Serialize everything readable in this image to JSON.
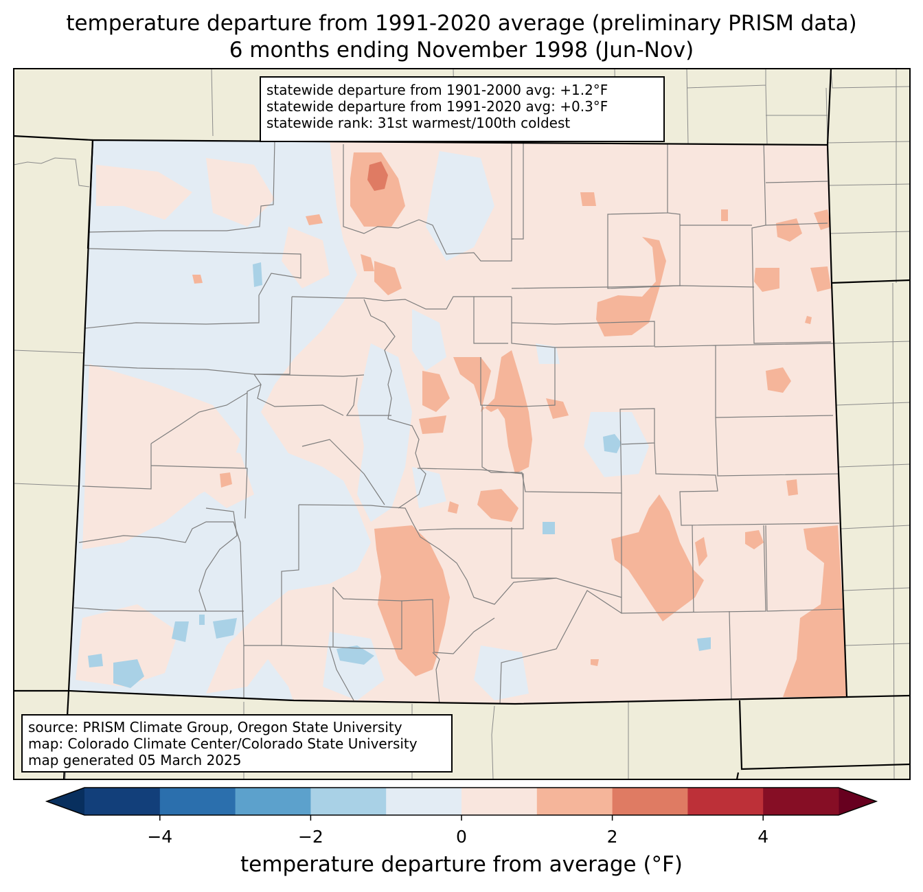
{
  "title": {
    "line1": "temperature departure from 1991-2020 average (preliminary PRISM data)",
    "line2": "6 months ending November 1998 (Jun-Nov)"
  },
  "stats": {
    "line1": "statewide departure from 1901-2000 avg: +1.2°F",
    "line2": "statewide departure from 1991-2020 avg: +0.3°F",
    "line3": "statewide rank: 31st warmest/100th coldest"
  },
  "credits": {
    "line1": "source: PRISM Climate Group, Oregon State University",
    "line2": "map: Colorado Climate Center/Colorado State University",
    "line3": "map generated 05 March 2025"
  },
  "colorbar": {
    "label": "temperature departure from average (°F)",
    "bounds": [
      -5,
      -4,
      -3,
      -2,
      -1,
      0,
      1,
      2,
      3,
      4,
      5
    ],
    "colors": [
      "#123f7a",
      "#2b6fad",
      "#5ca1cc",
      "#a9d1e6",
      "#e3ecf4",
      "#f9e6de",
      "#f5b59a",
      "#df7b63",
      "#bd3038",
      "#860e25"
    ],
    "under_color": "#082f5e",
    "over_color": "#67001f",
    "tick_labels": [
      "−4",
      "−2",
      "0",
      "2",
      "4"
    ],
    "tick_values": [
      -4,
      -2,
      0,
      2,
      4
    ]
  },
  "map_colors": {
    "land_outside": "#efedda",
    "neutral_cool": "#e3ecf4",
    "neutral_warm": "#f9e6de",
    "warm_1_2": "#f5b59a",
    "warm_2_3": "#df7b63",
    "cool_1_2": "#a9d1e6"
  }
}
